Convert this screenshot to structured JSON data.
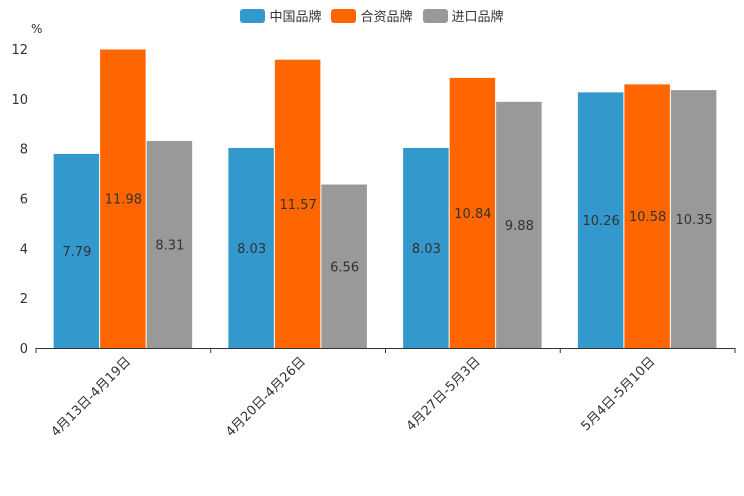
{
  "chart_data": {
    "type": "bar",
    "categories": [
      "4月13日-4月19日",
      "4月20日-4月26日",
      "4月27日-5月3日",
      "5月4日-5月10日"
    ],
    "series": [
      {
        "name": "中国品牌",
        "color": "#3399cc",
        "values": [
          7.79,
          8.03,
          8.03,
          10.26
        ]
      },
      {
        "name": "合资品牌",
        "color": "#ff6600",
        "values": [
          11.98,
          11.57,
          10.84,
          10.58
        ]
      },
      {
        "name": "进口品牌",
        "color": "#999999",
        "values": [
          8.31,
          6.56,
          9.88,
          10.35
        ]
      }
    ],
    "ylabel": "%",
    "ylim": [
      0,
      12
    ],
    "yticks": [
      0,
      2,
      4,
      6,
      8,
      10,
      12
    ],
    "legend_position": "top-center"
  }
}
